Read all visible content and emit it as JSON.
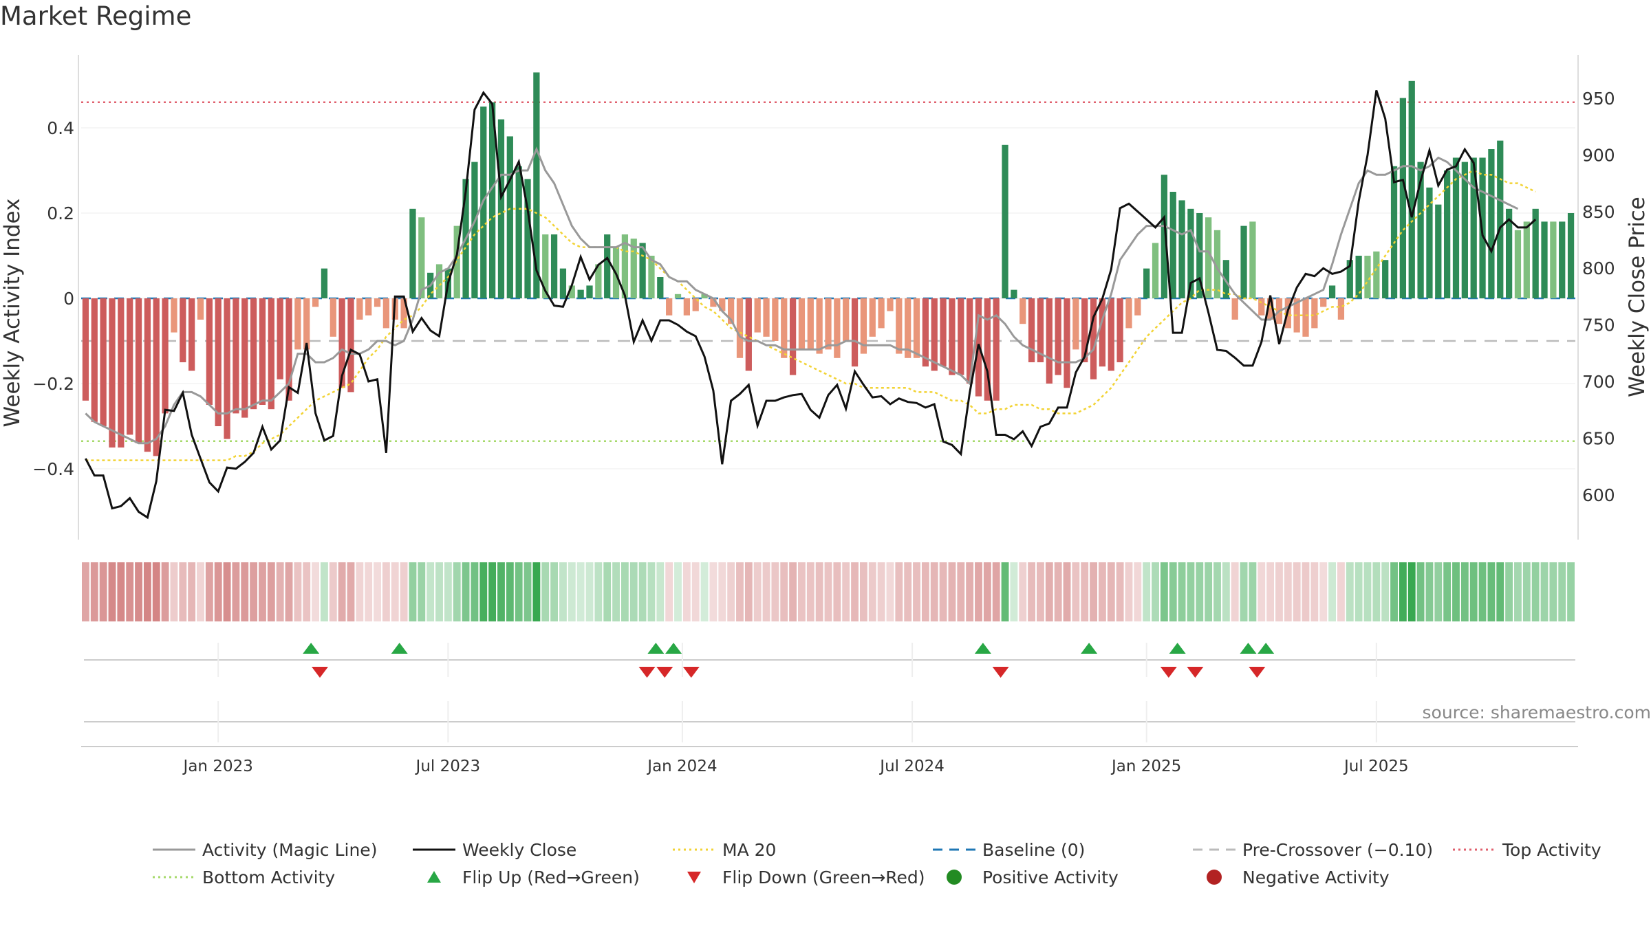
{
  "title": "Market Regime",
  "source": "source: sharemaestro.com",
  "colors": {
    "positive_strong": "#2e8b57",
    "positive_weak": "#7fbf7f",
    "negative_strong": "#cd5c5c",
    "negative_weak": "#e9967a",
    "magic_line": "#999999",
    "close_line": "#111111",
    "ma20": "#f2d335",
    "baseline": "#1f77b4",
    "pre_crossover": "#bbbbbb",
    "top_activity": "#e0606e",
    "bottom_activity": "#a6d96a",
    "flip_up": "#28a745",
    "flip_down": "#d62728"
  },
  "chart_data": {
    "type": "bar",
    "left_axis": {
      "label": "Weekly Activity Index",
      "ticks": [
        "0.4",
        "0.2",
        "0",
        "−0.2",
        "−0.4"
      ],
      "tick_values": [
        0.4,
        0.2,
        0,
        -0.2,
        -0.4
      ],
      "ylim": [
        -0.57,
        0.57
      ]
    },
    "right_axis": {
      "label": "Weekly Close Price",
      "ticks": [
        "950",
        "900",
        "850",
        "800",
        "750",
        "700",
        "650",
        "600"
      ],
      "tick_values": [
        950,
        900,
        850,
        800,
        750,
        700,
        650,
        600
      ],
      "ylim": [
        560,
        1000
      ]
    },
    "x_ticks": [
      {
        "label": "Jan 2023",
        "week": 15
      },
      {
        "label": "Jul 2023",
        "week": 41
      },
      {
        "label": "Jan 2024",
        "week": 67.5
      },
      {
        "label": "Jul 2024",
        "week": 93.5
      },
      {
        "label": "Jan 2025",
        "week": 120
      },
      {
        "label": "Jul 2025",
        "week": 146
      }
    ],
    "reference_lines": {
      "top_activity": 0.46,
      "bottom_activity": -0.335,
      "baseline": 0,
      "pre_crossover": -0.1
    },
    "activity": [
      -0.24,
      -0.29,
      -0.3,
      -0.35,
      -0.35,
      -0.32,
      -0.34,
      -0.36,
      -0.37,
      -0.27,
      -0.08,
      -0.15,
      -0.17,
      -0.05,
      -0.25,
      -0.3,
      -0.33,
      -0.27,
      -0.28,
      -0.26,
      -0.25,
      -0.26,
      -0.19,
      -0.24,
      -0.12,
      -0.12,
      -0.02,
      0.07,
      -0.09,
      -0.21,
      -0.22,
      -0.05,
      -0.04,
      -0.02,
      -0.07,
      -0.05,
      -0.07,
      0.21,
      0.19,
      0.06,
      0.08,
      0.07,
      0.17,
      0.28,
      0.32,
      0.45,
      0.46,
      0.42,
      0.38,
      0.31,
      0.28,
      0.53,
      0.15,
      0.15,
      0.07,
      0.03,
      0.02,
      0.03,
      0.08,
      0.15,
      0.12,
      0.15,
      0.14,
      0.13,
      0.1,
      0.05,
      -0.04,
      0.01,
      -0.04,
      -0.03,
      0.01,
      -0.02,
      -0.03,
      -0.06,
      -0.14,
      -0.17,
      -0.08,
      -0.09,
      -0.1,
      -0.14,
      -0.18,
      -0.12,
      -0.12,
      -0.13,
      -0.12,
      -0.14,
      -0.1,
      -0.16,
      -0.13,
      -0.09,
      -0.07,
      -0.03,
      -0.13,
      -0.14,
      -0.14,
      -0.16,
      -0.17,
      -0.16,
      -0.18,
      -0.18,
      -0.2,
      -0.23,
      -0.24,
      -0.24,
      0.36,
      0.02,
      -0.06,
      -0.15,
      -0.15,
      -0.2,
      -0.18,
      -0.21,
      -0.12,
      -0.15,
      -0.19,
      -0.16,
      -0.17,
      -0.15,
      -0.07,
      -0.04,
      0.07,
      0.13,
      0.29,
      0.25,
      0.23,
      0.21,
      0.2,
      0.19,
      0.16,
      0.09,
      -0.05,
      0.17,
      0.18,
      -0.04,
      -0.05,
      -0.06,
      -0.07,
      -0.08,
      -0.09,
      -0.07,
      -0.02,
      0.03,
      -0.05,
      0.09,
      0.1,
      0.1,
      0.11,
      0.09,
      0.31,
      0.47,
      0.51,
      0.32,
      0.26,
      0.22,
      0.3,
      0.33,
      0.32,
      0.33,
      0.33,
      0.35,
      0.37,
      0.21,
      0.16,
      0.18,
      0.21,
      0.18,
      0.18,
      0.18,
      0.2
    ],
    "weekly_close": [
      632,
      617,
      617,
      588,
      590,
      597,
      585,
      580,
      612,
      675,
      674,
      690,
      653,
      632,
      611,
      603,
      624,
      623,
      629,
      637,
      660,
      640,
      648,
      695,
      690,
      734,
      672,
      648,
      652,
      705,
      728,
      724,
      700,
      702,
      637,
      775,
      775,
      744,
      756,
      745,
      740,
      787,
      812,
      868,
      940,
      955,
      945,
      863,
      878,
      894,
      852,
      798,
      780,
      767,
      766,
      785,
      810,
      790,
      803,
      809,
      795,
      776,
      735,
      754,
      736,
      754,
      754,
      750,
      744,
      740,
      722,
      692,
      627,
      683,
      689,
      697,
      661,
      683,
      683,
      686,
      688,
      689,
      675,
      668,
      688,
      697,
      676,
      709,
      697,
      686,
      687,
      680,
      685,
      682,
      681,
      677,
      680,
      647,
      644,
      636,
      690,
      733,
      709,
      653,
      653,
      649,
      656,
      643,
      660,
      663,
      677,
      677,
      708,
      722,
      757,
      773,
      799,
      853,
      857,
      850,
      843,
      836,
      845,
      743,
      743,
      787,
      791,
      761,
      728,
      727,
      721,
      714,
      714,
      735,
      776,
      733,
      763,
      783,
      795,
      793,
      800,
      795,
      797,
      802,
      859,
      900,
      957,
      932,
      876,
      878,
      845,
      877,
      904,
      873,
      887,
      890,
      905,
      893,
      829,
      815,
      836,
      843,
      836,
      836,
      843
    ],
    "activity_magic_line": [
      -0.27,
      -0.29,
      -0.3,
      -0.31,
      -0.32,
      -0.33,
      -0.34,
      -0.34,
      -0.33,
      -0.3,
      -0.25,
      -0.22,
      -0.22,
      -0.23,
      -0.25,
      -0.27,
      -0.27,
      -0.26,
      -0.26,
      -0.25,
      -0.24,
      -0.24,
      -0.22,
      -0.2,
      -0.13,
      -0.13,
      -0.15,
      -0.15,
      -0.14,
      -0.12,
      -0.13,
      -0.13,
      -0.12,
      -0.1,
      -0.1,
      -0.11,
      -0.1,
      -0.05,
      0.02,
      0.03,
      0.06,
      0.07,
      0.1,
      0.14,
      0.18,
      0.23,
      0.26,
      0.29,
      0.29,
      0.3,
      0.3,
      0.35,
      0.3,
      0.27,
      0.22,
      0.17,
      0.14,
      0.12,
      0.12,
      0.12,
      0.12,
      0.13,
      0.12,
      0.12,
      0.09,
      0.08,
      0.05,
      0.04,
      0.04,
      0.02,
      0.01,
      0.0,
      -0.03,
      -0.05,
      -0.09,
      -0.1,
      -0.1,
      -0.11,
      -0.11,
      -0.12,
      -0.12,
      -0.12,
      -0.12,
      -0.12,
      -0.11,
      -0.11,
      -0.1,
      -0.1,
      -0.11,
      -0.11,
      -0.11,
      -0.11,
      -0.12,
      -0.12,
      -0.13,
      -0.14,
      -0.15,
      -0.16,
      -0.17,
      -0.18,
      -0.2,
      -0.04,
      -0.05,
      -0.04,
      -0.06,
      -0.09,
      -0.11,
      -0.12,
      -0.13,
      -0.14,
      -0.15,
      -0.15,
      -0.15,
      -0.14,
      -0.12,
      -0.05,
      0.01,
      0.09,
      0.12,
      0.15,
      0.17,
      0.17,
      0.17,
      0.16,
      0.15,
      0.16,
      0.11,
      0.11,
      0.07,
      0.04,
      0.01,
      -0.01,
      -0.03,
      -0.05,
      -0.05,
      -0.03,
      -0.02,
      -0.01,
      0.0,
      0.01,
      0.02,
      0.08,
      0.15,
      0.21,
      0.27,
      0.3,
      0.29,
      0.29,
      0.3,
      0.31,
      0.31,
      0.3,
      0.31,
      0.33,
      0.32,
      0.3,
      0.28,
      0.26,
      0.25,
      0.24,
      0.23,
      0.22,
      0.21
    ],
    "ma20": [
      -0.38,
      -0.38,
      -0.38,
      -0.38,
      -0.38,
      -0.38,
      -0.38,
      -0.38,
      -0.38,
      -0.38,
      -0.38,
      -0.38,
      -0.38,
      -0.38,
      -0.38,
      -0.38,
      -0.38,
      -0.37,
      -0.37,
      -0.36,
      -0.34,
      -0.33,
      -0.32,
      -0.3,
      -0.28,
      -0.26,
      -0.24,
      -0.23,
      -0.22,
      -0.21,
      -0.2,
      -0.17,
      -0.14,
      -0.12,
      -0.09,
      -0.07,
      -0.05,
      -0.04,
      -0.02,
      0.01,
      0.03,
      0.05,
      0.09,
      0.12,
      0.15,
      0.17,
      0.19,
      0.2,
      0.21,
      0.21,
      0.21,
      0.2,
      0.19,
      0.17,
      0.15,
      0.13,
      0.12,
      0.12,
      0.12,
      0.12,
      0.12,
      0.11,
      0.11,
      0.1,
      0.09,
      0.07,
      0.05,
      0.04,
      0.02,
      0.0,
      -0.02,
      -0.03,
      -0.05,
      -0.07,
      -0.08,
      -0.09,
      -0.1,
      -0.11,
      -0.12,
      -0.13,
      -0.14,
      -0.15,
      -0.16,
      -0.17,
      -0.18,
      -0.19,
      -0.2,
      -0.2,
      -0.21,
      -0.21,
      -0.21,
      -0.21,
      -0.21,
      -0.21,
      -0.22,
      -0.22,
      -0.22,
      -0.23,
      -0.24,
      -0.24,
      -0.25,
      -0.27,
      -0.27,
      -0.26,
      -0.26,
      -0.25,
      -0.25,
      -0.25,
      -0.26,
      -0.26,
      -0.27,
      -0.27,
      -0.27,
      -0.26,
      -0.25,
      -0.23,
      -0.21,
      -0.18,
      -0.15,
      -0.12,
      -0.09,
      -0.07,
      -0.05,
      -0.03,
      -0.01,
      0.0,
      0.02,
      0.02,
      0.02,
      0.01,
      0.01,
      0.0,
      0.0,
      -0.01,
      -0.02,
      -0.03,
      -0.04,
      -0.04,
      -0.04,
      -0.04,
      -0.03,
      -0.02,
      -0.02,
      -0.01,
      0.01,
      0.04,
      0.07,
      0.1,
      0.13,
      0.16,
      0.18,
      0.2,
      0.22,
      0.24,
      0.26,
      0.28,
      0.29,
      0.3,
      0.29,
      0.29,
      0.28,
      0.27,
      0.27,
      0.26,
      0.25
    ],
    "flip_up_weeks": [
      25.5,
      35.5,
      64.5,
      66.5,
      101.5,
      113.5,
      123.5,
      131.5,
      133.5
    ],
    "flip_down_weeks": [
      26.5,
      63.5,
      65.5,
      68.5,
      103.5,
      122.5,
      125.5,
      132.5
    ],
    "legend": [
      {
        "label": "Activity (Magic Line)",
        "kind": "line",
        "color": "#999999"
      },
      {
        "label": "Weekly Close",
        "kind": "line",
        "color": "#111111"
      },
      {
        "label": "MA 20",
        "kind": "dotted",
        "color": "#f2d335"
      },
      {
        "label": "Baseline (0)",
        "kind": "dashed",
        "color": "#1f77b4"
      },
      {
        "label": "Pre-Crossover (−0.10)",
        "kind": "dashed",
        "color": "#bbbbbb"
      },
      {
        "label": "Top Activity",
        "kind": "dotted",
        "color": "#e0606e"
      },
      {
        "label": "Bottom Activity",
        "kind": "dotted",
        "color": "#a6d96a"
      },
      {
        "label": "Flip Up (Red→Green)",
        "kind": "triangle-up",
        "color": "#28a745"
      },
      {
        "label": "Flip Down (Green→Red)",
        "kind": "triangle-down",
        "color": "#d62728"
      },
      {
        "label": "Positive Activity",
        "kind": "circle",
        "color": "#228b22"
      },
      {
        "label": "Negative Activity",
        "kind": "circle",
        "color": "#b22222"
      }
    ]
  }
}
